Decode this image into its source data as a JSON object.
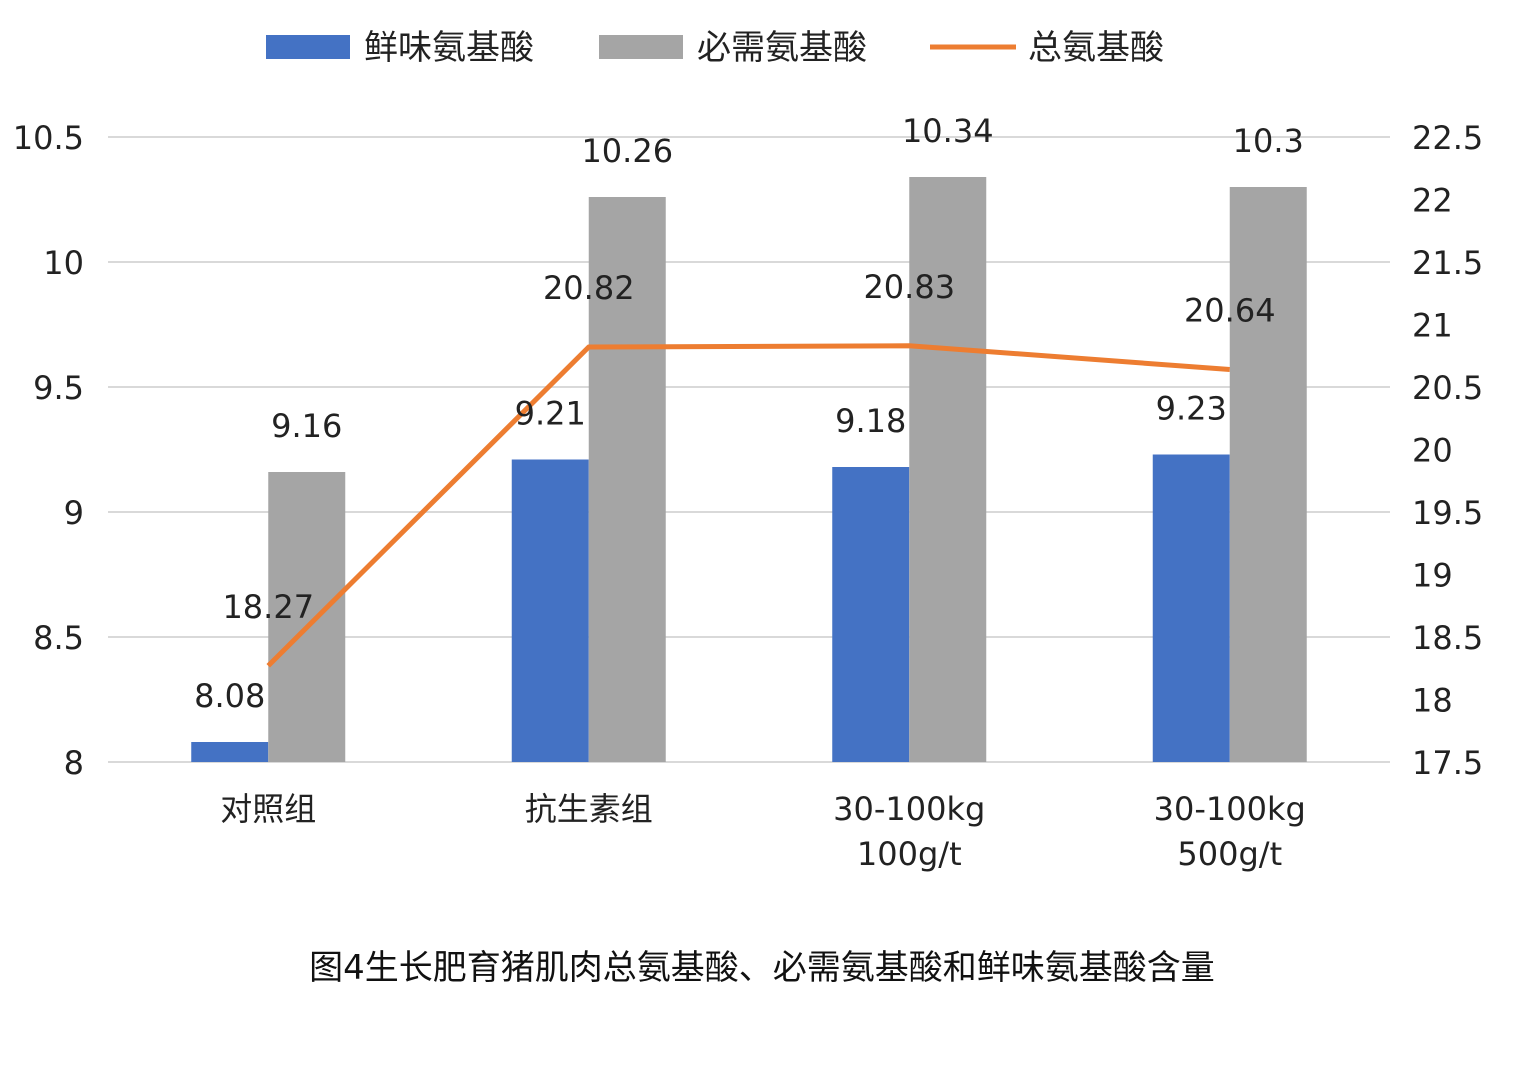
{
  "caption": "图4生长肥育猪肌肉总氨基酸、必需氨基酸和鲜味氨基酸含量",
  "chart_data": {
    "type": "bar",
    "categories": [
      [
        "对照组"
      ],
      [
        "抗生素组"
      ],
      [
        "30-100kg",
        "100g/t"
      ],
      [
        "30-100kg",
        "500g/t"
      ]
    ],
    "series": [
      {
        "name": "鲜味氨基酸",
        "type": "bar",
        "axis": "left",
        "color": "#4472C4",
        "values": [
          8.08,
          9.21,
          9.18,
          9.23
        ],
        "labels": [
          "8.08",
          "9.21",
          "9.18",
          "9.23"
        ]
      },
      {
        "name": "必需氨基酸",
        "type": "bar",
        "axis": "left",
        "color": "#A5A5A5",
        "values": [
          9.16,
          10.26,
          10.34,
          10.3
        ],
        "labels": [
          "9.16",
          "10.26",
          "10.34",
          "10.3"
        ]
      },
      {
        "name": "总氨基酸",
        "type": "line",
        "axis": "right",
        "color": "#ED7D31",
        "values": [
          18.27,
          20.82,
          20.83,
          20.64
        ],
        "labels": [
          "18.27",
          "20.82",
          "20.83",
          "20.64"
        ]
      }
    ],
    "y_left": {
      "min": 8,
      "max": 10.5,
      "ticks": [
        "8",
        "8.5",
        "9",
        "9.5",
        "10",
        "10.5"
      ]
    },
    "y_right": {
      "min": 17.5,
      "max": 22.5,
      "ticks": [
        "17.5",
        "18",
        "18.5",
        "19",
        "19.5",
        "20",
        "20.5",
        "21",
        "21.5",
        "22",
        "22.5"
      ]
    },
    "grid": true,
    "legend_position": "top"
  }
}
